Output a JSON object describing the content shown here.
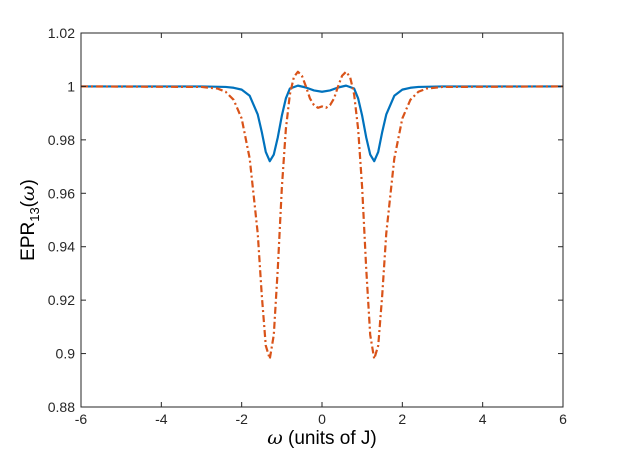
{
  "chart_data": {
    "type": "line",
    "title": "",
    "xlabel_symbol": "ω",
    "xlabel_text": " (units of J)",
    "ylabel_main": "EPR",
    "ylabel_sub": "13",
    "ylabel_arg_open": "(",
    "ylabel_arg_symbol": "ω",
    "ylabel_arg_close": ")",
    "xlim": [
      -6,
      6
    ],
    "ylim": [
      0.88,
      1.02
    ],
    "xticks": [
      -6,
      -4,
      -2,
      0,
      2,
      4,
      6
    ],
    "xtick_labels": [
      "-6",
      "-4",
      "-2",
      "0",
      "2",
      "4",
      "6"
    ],
    "yticks": [
      0.88,
      0.9,
      0.92,
      0.94,
      0.96,
      0.98,
      1.0,
      1.02
    ],
    "ytick_labels": [
      "0.88",
      "0.9",
      "0.92",
      "0.94",
      "0.96",
      "0.98",
      "1",
      "1.02"
    ],
    "grid": false,
    "legend": "none",
    "series": [
      {
        "color": "#0072BD",
        "style": "solid",
        "x": [
          -6,
          -3,
          -2.4,
          -2.2,
          -2,
          -1.8,
          -1.6,
          -1.5,
          -1.4,
          -1.3,
          -1.2,
          -1.1,
          -1.0,
          -0.9,
          -0.8,
          -0.6,
          -0.4,
          -0.2,
          0,
          0.2,
          0.4,
          0.6,
          0.8,
          0.9,
          1.0,
          1.1,
          1.2,
          1.3,
          1.4,
          1.5,
          1.6,
          1.8,
          2,
          2.2,
          2.4,
          3,
          6
        ],
        "y": [
          1.0,
          1.0,
          0.9998,
          0.9995,
          0.9988,
          0.9965,
          0.9895,
          0.983,
          0.9755,
          0.972,
          0.9745,
          0.981,
          0.989,
          0.9955,
          0.9992,
          1.0003,
          0.9996,
          0.9985,
          0.998,
          0.9985,
          0.9996,
          1.0003,
          0.9992,
          0.9955,
          0.989,
          0.981,
          0.9745,
          0.972,
          0.9755,
          0.983,
          0.9895,
          0.9965,
          0.9988,
          0.9995,
          0.9998,
          1.0,
          1.0
        ]
      },
      {
        "color": "#D95319",
        "style": "dashdot",
        "x": [
          -6,
          -3,
          -2.6,
          -2.4,
          -2.2,
          -2.0,
          -1.8,
          -1.6,
          -1.5,
          -1.4,
          -1.3,
          -1.2,
          -1.1,
          -1.0,
          -0.9,
          -0.8,
          -0.7,
          -0.6,
          -0.5,
          -0.4,
          -0.3,
          -0.2,
          -0.1,
          0,
          0.1,
          0.2,
          0.3,
          0.4,
          0.5,
          0.6,
          0.7,
          0.8,
          0.9,
          1.0,
          1.1,
          1.2,
          1.3,
          1.4,
          1.5,
          1.6,
          1.8,
          2.0,
          2.2,
          2.4,
          2.6,
          3,
          6
        ],
        "y": [
          1.0,
          0.9998,
          0.9992,
          0.998,
          0.995,
          0.988,
          0.973,
          0.945,
          0.922,
          0.903,
          0.898,
          0.907,
          0.932,
          0.962,
          0.984,
          0.997,
          1.0035,
          1.0055,
          1.004,
          1.0,
          0.9955,
          0.993,
          0.992,
          0.9925,
          0.992,
          0.993,
          0.9955,
          1.0,
          1.004,
          1.0055,
          1.0035,
          0.997,
          0.984,
          0.962,
          0.932,
          0.907,
          0.898,
          0.903,
          0.922,
          0.945,
          0.973,
          0.988,
          0.995,
          0.998,
          0.9992,
          0.9998,
          1.0
        ]
      }
    ]
  }
}
